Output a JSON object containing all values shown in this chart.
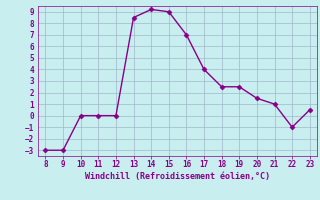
{
  "x": [
    8,
    9,
    10,
    11,
    12,
    13,
    14,
    15,
    16,
    17,
    18,
    19,
    20,
    21,
    22,
    23
  ],
  "y": [
    -3,
    -3,
    0,
    0,
    0,
    8.5,
    9.2,
    9.0,
    7.0,
    4.0,
    2.5,
    2.5,
    1.5,
    1.0,
    -1.0,
    0.5
  ],
  "line_color": "#880088",
  "marker_color": "#880088",
  "bg_color": "#c8eef0",
  "grid_color": "#a0b8c8",
  "xlabel": "Windchill (Refroidissement éolien,°C)",
  "xlabel_color": "#880088",
  "xticks": [
    8,
    9,
    10,
    11,
    12,
    13,
    14,
    15,
    16,
    17,
    18,
    19,
    20,
    21,
    22,
    23
  ],
  "yticks": [
    -3,
    -2,
    -1,
    0,
    1,
    2,
    3,
    4,
    5,
    6,
    7,
    8,
    9
  ],
  "xlim": [
    7.6,
    23.4
  ],
  "ylim": [
    -3.5,
    9.5
  ]
}
